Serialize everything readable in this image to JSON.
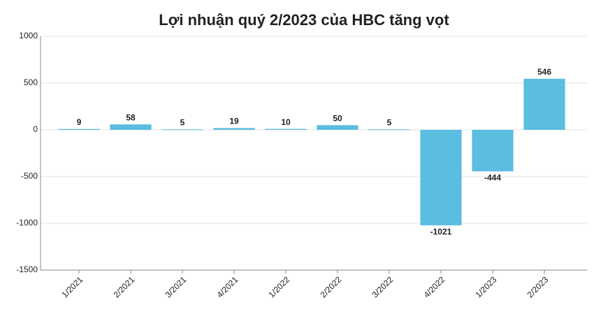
{
  "chart_data": {
    "type": "bar",
    "title": "Lợi nhuận quý 2/2023 của HBC tăng vọt",
    "categories": [
      "1/2021",
      "2/2021",
      "3/2021",
      "4/2021",
      "1/2022",
      "2/2022",
      "3/2022",
      "4/2022",
      "1/2023",
      "2/2023"
    ],
    "values": [
      9,
      58,
      5,
      19,
      10,
      50,
      5,
      -1021,
      -444,
      546
    ],
    "color": "#5bbde0",
    "ylim": [
      -1500,
      1000
    ],
    "yticks": [
      -1500,
      -1000,
      -500,
      0,
      500,
      1000
    ],
    "grid": true
  }
}
